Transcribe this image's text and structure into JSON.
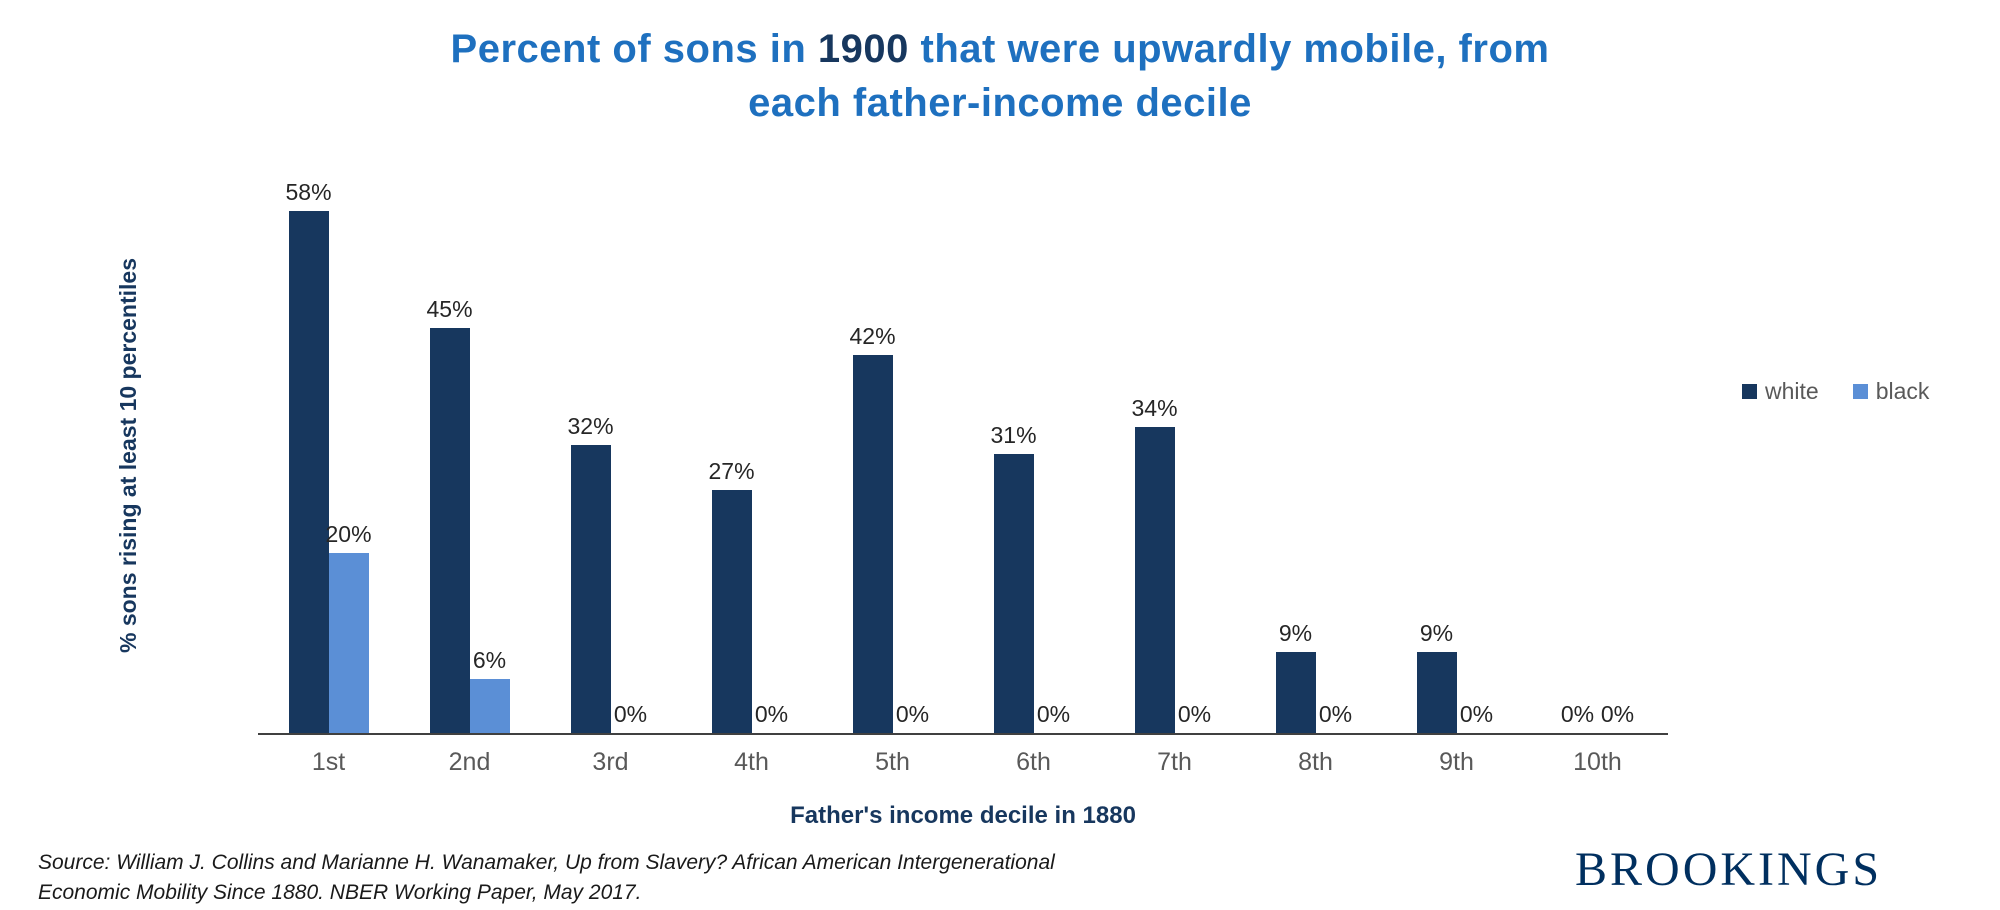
{
  "title": {
    "part1": "Percent of sons in ",
    "year": "1900",
    "part2": " that were upwardly mobile, from each father-income decile"
  },
  "axes": {
    "y_label": "% sons rising at least 10 percentiles",
    "x_label": "Father's income decile in 1880"
  },
  "source": {
    "line1": "Source: William J. Collins and Marianne H. Wanamaker, Up from Slavery? African American Intergenerational",
    "line2": "Economic Mobility Since 1880. NBER Working Paper, May 2017."
  },
  "branding": {
    "wordmark": "BROOKINGS"
  },
  "colors": {
    "title_blue": "#1E70BF",
    "title_year_navy": "#17375E",
    "axis_navy": "#17375E",
    "brookings_navy": "#002F5F"
  },
  "chart_data": {
    "type": "bar",
    "title": "Percent of sons in 1900 that were upwardly mobile, from each father-income decile",
    "categories": [
      "1st",
      "2nd",
      "3rd",
      "4th",
      "5th",
      "6th",
      "7th",
      "8th",
      "9th",
      "10th"
    ],
    "series": [
      {
        "name": "white",
        "color": "#17375E",
        "values": [
          58,
          45,
          32,
          27,
          42,
          31,
          34,
          9,
          9,
          0
        ]
      },
      {
        "name": "black",
        "color": "#5B8FD6",
        "values": [
          20,
          6,
          0,
          0,
          0,
          0,
          0,
          0,
          0,
          0
        ]
      }
    ],
    "xlabel": "Father's income decile in 1880",
    "ylabel": "% sons rising at least 10 percentiles",
    "ylim": [
      0,
      60
    ],
    "grid": false,
    "data_labels": true,
    "data_label_format": "{value}%",
    "legend_position": "right"
  }
}
